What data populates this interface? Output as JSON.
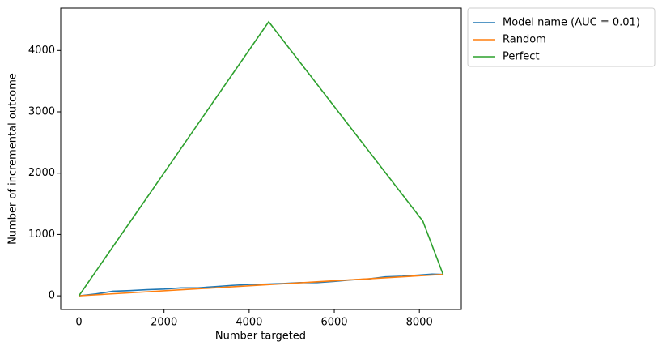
{
  "chart_data": {
    "type": "line",
    "xlabel": "Number targeted",
    "ylabel": "Number of incremental outcome",
    "xlim": [
      -428,
      8985
    ],
    "ylim": [
      -223,
      4691
    ],
    "xticks": [
      0,
      2000,
      4000,
      6000,
      8000
    ],
    "yticks": [
      0,
      1000,
      2000,
      3000,
      4000
    ],
    "legend": "outside-upper-right",
    "series": [
      {
        "name": "Model name (AUC = 0.01)",
        "color": "#1f77b4",
        "x": [
          0,
          400,
          800,
          1200,
          1600,
          2000,
          2400,
          2800,
          3200,
          3600,
          4000,
          4400,
          4800,
          5200,
          5600,
          6000,
          6400,
          6800,
          7200,
          7600,
          8000,
          8300,
          8557
        ],
        "values": [
          0,
          30,
          75,
          85,
          100,
          110,
          130,
          130,
          150,
          170,
          185,
          190,
          200,
          215,
          215,
          235,
          260,
          275,
          310,
          320,
          340,
          355,
          350
        ]
      },
      {
        "name": "Random",
        "color": "#ff7f0e",
        "x": [
          0,
          8557
        ],
        "values": [
          0,
          350
        ]
      },
      {
        "name": "Perfect",
        "color": "#2ca02c",
        "x": [
          0,
          4460,
          8080,
          8557
        ],
        "values": [
          0,
          4468,
          1220,
          350
        ]
      }
    ]
  }
}
